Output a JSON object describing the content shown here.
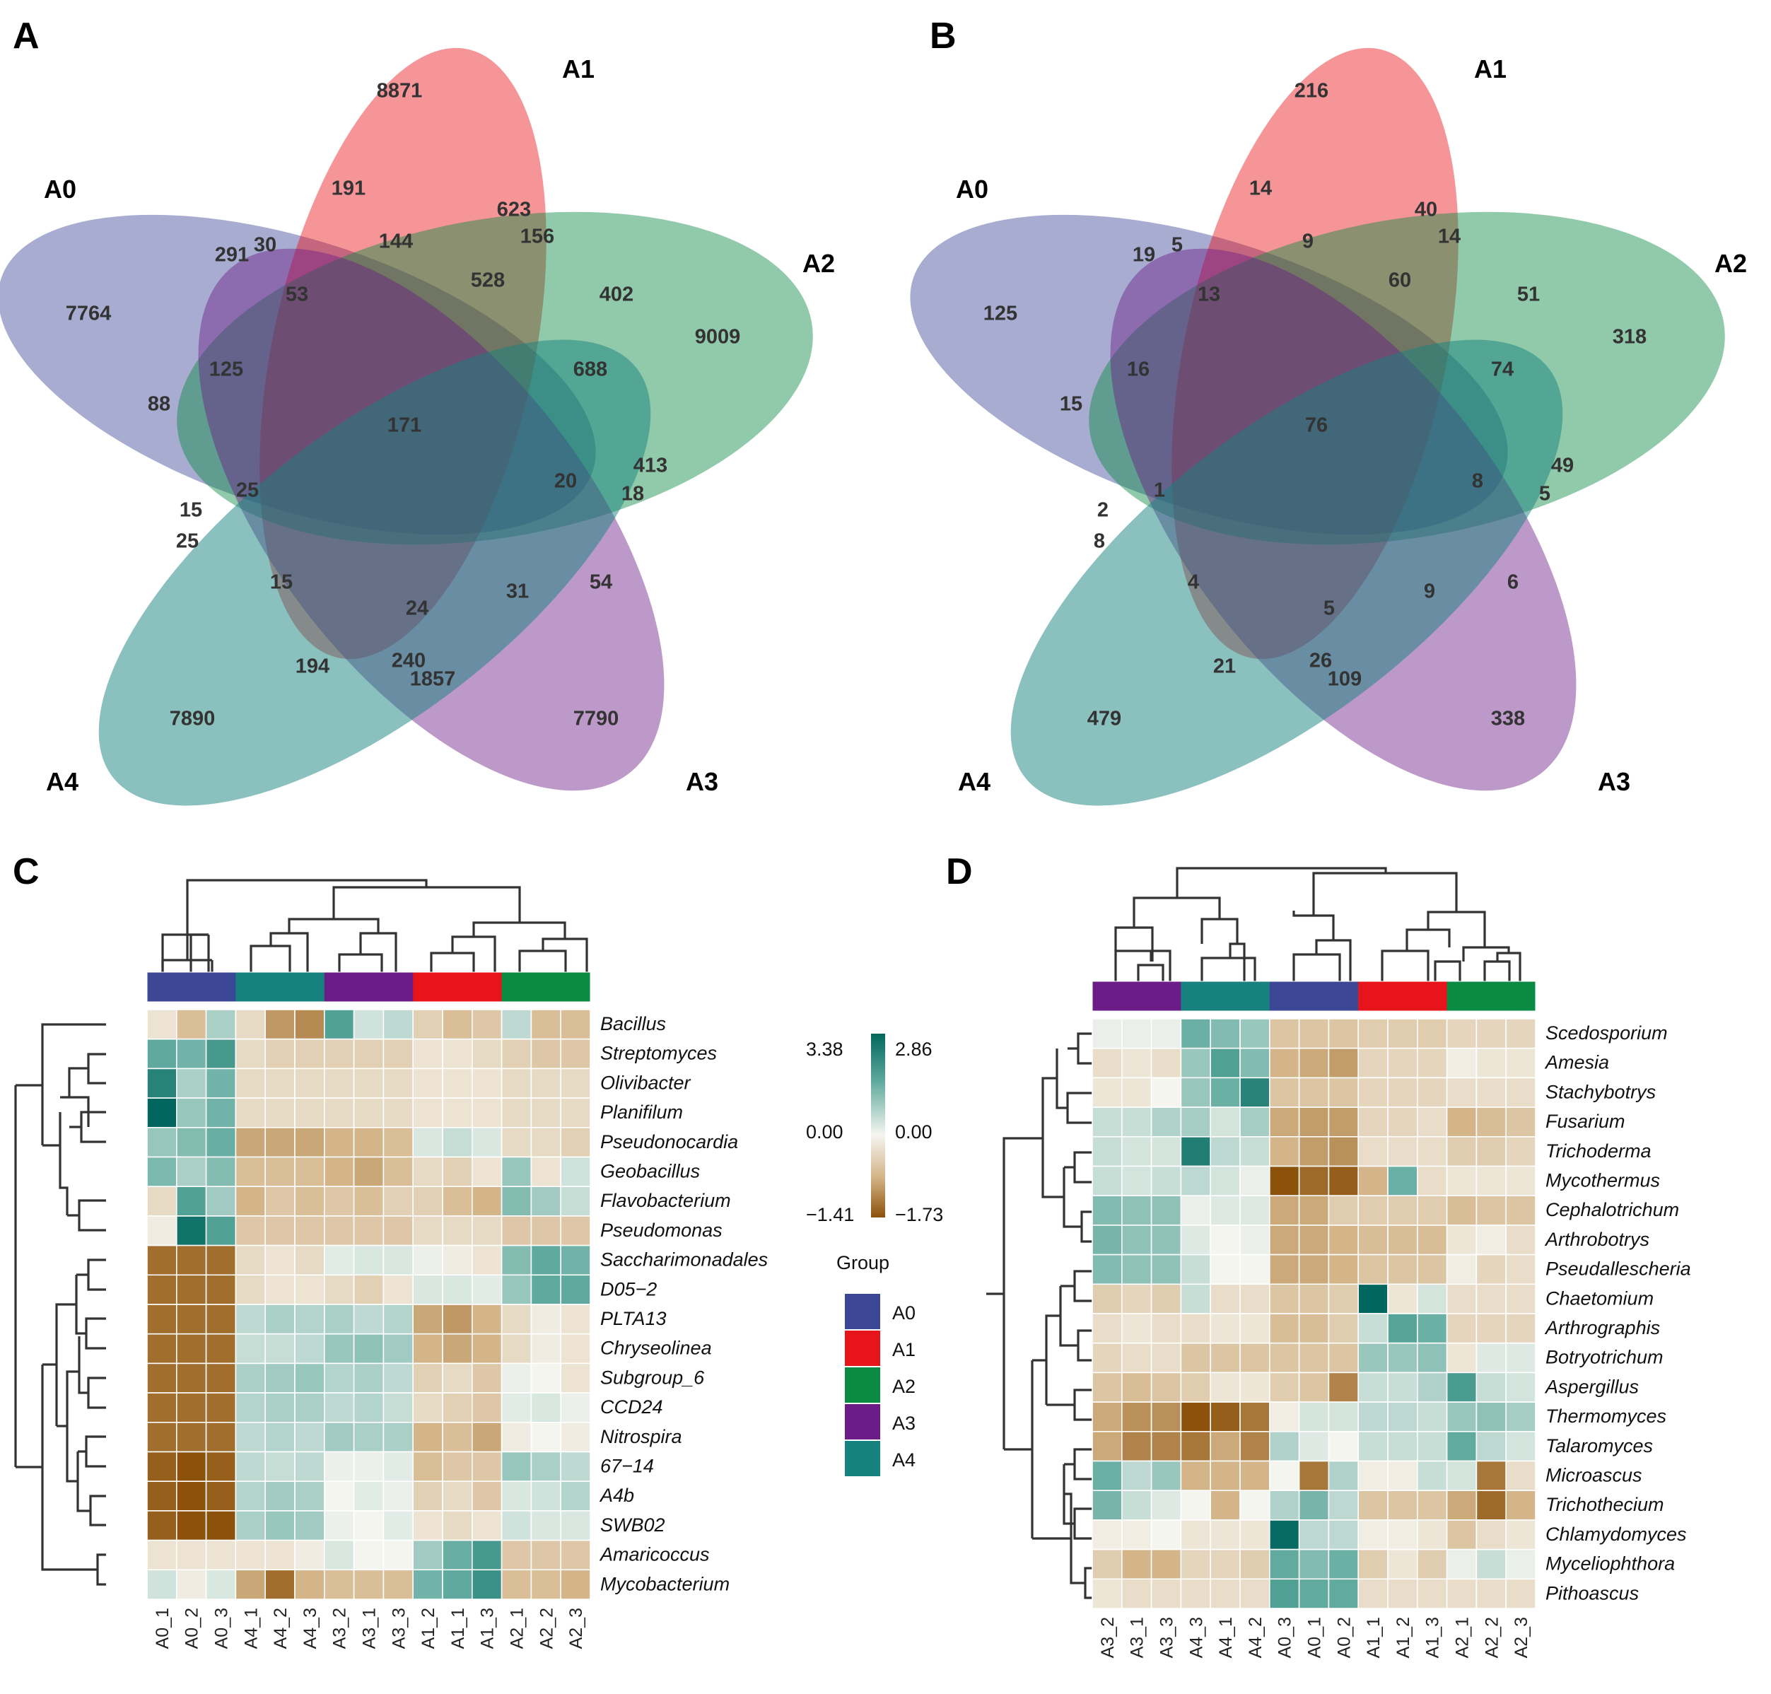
{
  "panels": {
    "A": "A",
    "B": "B",
    "C": "C",
    "D": "D"
  },
  "colors": {
    "A0": "#3C4896",
    "A1": "#E8141B",
    "A2": "#0B8A43",
    "A3": "#6C1C87",
    "A4": "#16817E"
  },
  "venn_A": {
    "sets": [
      "A0",
      "A1",
      "A2",
      "A3",
      "A4"
    ],
    "counts": [
      {
        "region": "A1 only",
        "value": "8871"
      },
      {
        "region": "A2 only",
        "value": "9009"
      },
      {
        "region": "A3 only",
        "value": "7790"
      },
      {
        "region": "A4 only",
        "value": "7890"
      },
      {
        "region": "A0 only",
        "value": "7764"
      },
      {
        "region": "A0∩A1",
        "value": "191"
      },
      {
        "region": "A1∩A2",
        "value": "623"
      },
      {
        "region": "A1∩A2∩A3",
        "value": "156"
      },
      {
        "region": "A0∩A1∩A3",
        "value": "144"
      },
      {
        "region": "A0∩A1 edge",
        "value": "291"
      },
      {
        "region": "A0∩A1∩A4",
        "value": "30"
      },
      {
        "region": "A0∩A1∩A3∩A4",
        "value": "53"
      },
      {
        "region": "A1∩A2∩A3∩A0",
        "value": "528"
      },
      {
        "region": "A1∩A2∩A3 inner",
        "value": "402"
      },
      {
        "region": "A0∩A2∩A4",
        "value": "125"
      },
      {
        "region": "A2∩A3",
        "value": "688"
      },
      {
        "region": "A0∩A2",
        "value": "88"
      },
      {
        "region": "all",
        "value": "171"
      },
      {
        "region": "A0∩A2∩A3∩A4",
        "value": "25"
      },
      {
        "region": "A2∩A3∩A1",
        "value": "20"
      },
      {
        "region": "A2∩A3 edge",
        "value": "413"
      },
      {
        "region": "A2∩A3∩A4",
        "value": "18"
      },
      {
        "region": "A0∩A4∩A2",
        "value": "15"
      },
      {
        "region": "A0∩A4",
        "value": "25"
      },
      {
        "region": "A0∩A4∩A1",
        "value": "15"
      },
      {
        "region": "A1∩A3∩A4",
        "value": "24"
      },
      {
        "region": "A1∩A3",
        "value": "31"
      },
      {
        "region": "A3∩A1∩A2",
        "value": "54"
      },
      {
        "region": "A1∩A4",
        "value": "194"
      },
      {
        "region": "A1∩A3∩A4 low",
        "value": "240"
      },
      {
        "region": "A3∩A4",
        "value": "1857"
      }
    ]
  },
  "venn_B": {
    "sets": [
      "A0",
      "A1",
      "A2",
      "A3",
      "A4"
    ],
    "counts": [
      {
        "region": "A1 only",
        "value": "216"
      },
      {
        "region": "A2 only",
        "value": "318"
      },
      {
        "region": "A3 only",
        "value": "338"
      },
      {
        "region": "A4 only",
        "value": "479"
      },
      {
        "region": "A0 only",
        "value": "125"
      },
      {
        "region": "A0∩A1",
        "value": "14"
      },
      {
        "region": "A1∩A2",
        "value": "40"
      },
      {
        "region": "A1∩A2∩A3",
        "value": "14"
      },
      {
        "region": "A0∩A1∩A3",
        "value": "9"
      },
      {
        "region": "A0∩A1 edge",
        "value": "19"
      },
      {
        "region": "A0∩A1∩A4",
        "value": "5"
      },
      {
        "region": "A0∩A1∩A3∩A4",
        "value": "13"
      },
      {
        "region": "A1∩A2∩A3∩A0",
        "value": "60"
      },
      {
        "region": "A1∩A2∩A3 inner",
        "value": "51"
      },
      {
        "region": "A0∩A2∩A4",
        "value": "16"
      },
      {
        "region": "A2∩A3",
        "value": "74"
      },
      {
        "region": "A0∩A2",
        "value": "15"
      },
      {
        "region": "all",
        "value": "76"
      },
      {
        "region": "A0∩A2∩A3∩A4",
        "value": "1"
      },
      {
        "region": "A2∩A3∩A1",
        "value": "8"
      },
      {
        "region": "A2∩A3 edge",
        "value": "49"
      },
      {
        "region": "A2∩A3∩A4",
        "value": "5"
      },
      {
        "region": "A0∩A4∩A2",
        "value": "2"
      },
      {
        "region": "A0∩A4",
        "value": "8"
      },
      {
        "region": "A0∩A4∩A1",
        "value": "4"
      },
      {
        "region": "A1∩A3∩A4",
        "value": "5"
      },
      {
        "region": "A1∩A3",
        "value": "9"
      },
      {
        "region": "A3∩A1∩A2",
        "value": "6"
      },
      {
        "region": "A1∩A4",
        "value": "21"
      },
      {
        "region": "A1∩A3∩A4 low",
        "value": "26"
      },
      {
        "region": "A3∩A4",
        "value": "109"
      }
    ]
  },
  "chart_data": [
    {
      "type": "heatmap",
      "panel": "C",
      "rows": [
        "Bacillus",
        "Streptomyces",
        "Olivibacter",
        "Planifilum",
        "Pseudonocardia",
        "Geobacillus",
        "Flavobacterium",
        "Pseudomonas",
        "Saccharimonadales",
        "D05−2",
        "PLTA13",
        "Chryseolinea",
        "Subgroup_6",
        "CCD24",
        "Nitrospira",
        "67−14",
        "A4b",
        "SWB02",
        "Amaricoccus",
        "Mycobacterium"
      ],
      "columns": [
        "A0_1",
        "A0_2",
        "A0_3",
        "A4_1",
        "A4_2",
        "A4_3",
        "A3_2",
        "A3_1",
        "A3_3",
        "A1_2",
        "A1_1",
        "A1_3",
        "A2_1",
        "A2_2",
        "A2_3"
      ],
      "column_groups": [
        "A0",
        "A0",
        "A0",
        "A4",
        "A4",
        "A4",
        "A3",
        "A3",
        "A3",
        "A1",
        "A1",
        "A1",
        "A2",
        "A2",
        "A2"
      ],
      "values": [
        [
          -0.2,
          -0.6,
          0.8,
          -0.3,
          -0.9,
          -1.0,
          1.8,
          0.4,
          0.6,
          -0.4,
          -0.6,
          -0.5,
          0.6,
          -0.6,
          -0.6
        ],
        [
          1.6,
          1.4,
          2.0,
          -0.3,
          -0.4,
          -0.4,
          -0.4,
          -0.4,
          -0.4,
          -0.2,
          -0.2,
          -0.3,
          -0.4,
          -0.5,
          -0.5
        ],
        [
          2.6,
          0.8,
          1.4,
          -0.3,
          -0.3,
          -0.3,
          -0.3,
          -0.3,
          -0.3,
          -0.2,
          -0.2,
          -0.2,
          -0.3,
          -0.3,
          -0.3
        ],
        [
          3.3,
          1.0,
          1.4,
          -0.3,
          -0.3,
          -0.3,
          -0.3,
          -0.3,
          -0.3,
          -0.2,
          -0.2,
          -0.2,
          -0.3,
          -0.3,
          -0.3
        ],
        [
          1.0,
          1.2,
          1.5,
          -0.8,
          -0.8,
          -0.8,
          -0.7,
          -0.7,
          -0.6,
          0.3,
          0.5,
          0.3,
          -0.3,
          -0.3,
          -0.4
        ],
        [
          1.3,
          0.8,
          1.2,
          -0.6,
          -0.6,
          -0.6,
          -0.7,
          -0.8,
          -0.6,
          -0.3,
          -0.4,
          -0.2,
          1.0,
          -0.2,
          0.4
        ],
        [
          -0.3,
          1.8,
          0.9,
          -0.7,
          -0.5,
          -0.6,
          -0.5,
          -0.6,
          -0.4,
          -0.4,
          -0.6,
          -0.7,
          1.2,
          0.9,
          0.5
        ],
        [
          -0.1,
          3.0,
          1.8,
          -0.5,
          -0.5,
          -0.5,
          -0.5,
          -0.5,
          -0.5,
          -0.3,
          -0.3,
          -0.3,
          -0.5,
          -0.5,
          -0.5
        ],
        [
          -1.2,
          -1.2,
          -1.2,
          -0.3,
          -0.2,
          -0.3,
          0.2,
          0.3,
          0.3,
          0.1,
          -0.1,
          -0.2,
          1.2,
          1.6,
          1.4
        ],
        [
          -1.2,
          -1.2,
          -1.2,
          -0.3,
          -0.2,
          -0.2,
          -0.3,
          -0.4,
          -0.2,
          0.3,
          0.3,
          0.2,
          1.0,
          1.6,
          1.6
        ],
        [
          -1.2,
          -1.2,
          -1.2,
          0.6,
          0.8,
          0.7,
          0.8,
          0.6,
          0.7,
          -0.8,
          -0.9,
          -0.7,
          -0.3,
          -0.1,
          -0.2
        ],
        [
          -1.2,
          -1.2,
          -1.2,
          0.5,
          0.5,
          0.6,
          1.0,
          1.1,
          0.9,
          -0.7,
          -0.8,
          -0.7,
          -0.3,
          -0.1,
          -0.2
        ],
        [
          -1.2,
          -1.2,
          -1.2,
          0.8,
          0.9,
          1.0,
          0.7,
          0.8,
          0.6,
          -0.4,
          -0.3,
          -0.5,
          0.1,
          0.0,
          -0.2
        ],
        [
          -1.2,
          -1.2,
          -1.2,
          0.7,
          0.8,
          0.8,
          0.6,
          0.7,
          0.5,
          -0.3,
          -0.4,
          -0.5,
          0.2,
          0.3,
          0.1
        ],
        [
          -1.2,
          -1.2,
          -1.2,
          0.6,
          0.7,
          0.6,
          0.9,
          0.8,
          0.8,
          -0.7,
          -0.6,
          -0.8,
          -0.1,
          0.0,
          -0.1
        ],
        [
          -1.3,
          -1.4,
          -1.3,
          0.6,
          0.5,
          0.6,
          0.1,
          0.1,
          0.2,
          -0.6,
          -0.5,
          -0.5,
          1.0,
          0.8,
          0.6
        ],
        [
          -1.3,
          -1.4,
          -1.3,
          0.7,
          0.9,
          0.8,
          0.0,
          0.2,
          0.1,
          -0.4,
          -0.3,
          -0.5,
          0.3,
          0.4,
          0.7
        ],
        [
          -1.3,
          -1.4,
          -1.4,
          0.8,
          1.0,
          0.9,
          0.1,
          0.0,
          0.2,
          -0.2,
          -0.3,
          -0.2,
          0.4,
          0.3,
          0.3
        ],
        [
          -0.2,
          -0.2,
          -0.2,
          -0.2,
          -0.2,
          -0.1,
          0.3,
          0.0,
          0.0,
          0.9,
          1.5,
          2.0,
          -0.5,
          -0.5,
          -0.5
        ],
        [
          0.4,
          -0.1,
          0.3,
          -0.8,
          -1.2,
          -0.7,
          -0.6,
          -0.6,
          -0.6,
          1.4,
          1.6,
          2.2,
          -0.6,
          -0.6,
          -0.7
        ]
      ],
      "legend": {
        "top": "3.38",
        "mid": "0.00",
        "bottom": "−1.41",
        "title": "Group",
        "groups": [
          "A0",
          "A1",
          "A2",
          "A3",
          "A4"
        ]
      }
    },
    {
      "type": "heatmap",
      "panel": "D",
      "rows": [
        "Scedosporium",
        "Amesia",
        "Stachybotrys",
        "Fusarium",
        "Trichoderma",
        "Mycothermus",
        "Cephalotrichum",
        "Arthrobotrys",
        "Pseudallescheria",
        "Chaetomium",
        "Arthrographis",
        "Botryotrichum",
        "Aspergillus",
        "Thermomyces",
        "Talaromyces",
        "Microascus",
        "Trichothecium",
        "Chlamydomyces",
        "Myceliophthora",
        "Pithoascus"
      ],
      "columns": [
        "A3_2",
        "A3_1",
        "A3_3",
        "A4_3",
        "A4_1",
        "A4_2",
        "A0_3",
        "A0_1",
        "A0_2",
        "A1_1",
        "A1_2",
        "A1_3",
        "A2_1",
        "A2_2",
        "A2_3"
      ],
      "column_groups": [
        "A3",
        "A3",
        "A3",
        "A4",
        "A4",
        "A4",
        "A0",
        "A0",
        "A0",
        "A1",
        "A1",
        "A1",
        "A2",
        "A2",
        "A2"
      ],
      "values": [
        [
          0.1,
          0.1,
          0.1,
          1.2,
          1.0,
          0.8,
          -0.6,
          -0.6,
          -0.6,
          -0.5,
          -0.5,
          -0.5,
          -0.4,
          -0.4,
          -0.4
        ],
        [
          -0.3,
          -0.2,
          -0.3,
          0.8,
          1.5,
          1.0,
          -0.8,
          -0.9,
          -1.0,
          -0.4,
          -0.4,
          -0.4,
          -0.1,
          -0.2,
          -0.2
        ],
        [
          -0.2,
          -0.2,
          0.0,
          0.8,
          1.2,
          2.1,
          -0.6,
          -0.6,
          -0.6,
          -0.4,
          -0.4,
          -0.4,
          -0.3,
          -0.3,
          -0.3
        ],
        [
          0.4,
          0.4,
          0.6,
          0.7,
          0.3,
          0.7,
          -0.9,
          -1.0,
          -1.0,
          -0.4,
          -0.4,
          -0.3,
          -0.8,
          -0.7,
          -0.6
        ],
        [
          0.4,
          0.3,
          0.3,
          2.2,
          0.5,
          0.4,
          -0.8,
          -1.0,
          -1.1,
          -0.3,
          -0.3,
          -0.3,
          -0.5,
          -0.5,
          -0.4
        ],
        [
          0.4,
          0.3,
          0.4,
          0.5,
          0.3,
          0.1,
          -1.6,
          -1.4,
          -1.5,
          -0.8,
          1.2,
          -0.3,
          -0.2,
          -0.2,
          -0.2
        ],
        [
          1.0,
          0.9,
          0.9,
          0.1,
          0.2,
          0.2,
          -0.9,
          -0.9,
          -0.5,
          -0.5,
          -0.5,
          -0.5,
          -0.7,
          -0.6,
          -0.6
        ],
        [
          1.1,
          0.9,
          0.9,
          0.2,
          0.0,
          0.1,
          -0.9,
          -0.9,
          -0.8,
          -0.7,
          -0.7,
          -0.7,
          -0.2,
          -0.1,
          -0.3
        ],
        [
          1.0,
          0.9,
          0.9,
          0.4,
          0.0,
          0.0,
          -0.9,
          -0.9,
          -0.8,
          -0.6,
          -0.6,
          -0.6,
          -0.1,
          -0.4,
          -0.3
        ],
        [
          -0.5,
          -0.4,
          -0.5,
          0.4,
          -0.3,
          -0.3,
          -0.6,
          -0.6,
          -0.5,
          2.7,
          -0.2,
          0.3,
          -0.3,
          -0.3,
          -0.3
        ],
        [
          -0.3,
          -0.2,
          -0.3,
          -0.3,
          -0.2,
          -0.2,
          -0.7,
          -0.7,
          -0.5,
          0.4,
          1.4,
          1.2,
          -0.4,
          -0.4,
          -0.4
        ],
        [
          -0.4,
          -0.3,
          -0.3,
          -0.6,
          -0.6,
          -0.6,
          -0.6,
          -0.6,
          -0.6,
          0.8,
          0.8,
          0.9,
          -0.2,
          0.2,
          0.2
        ],
        [
          -0.6,
          -0.7,
          -0.6,
          -0.5,
          -0.2,
          -0.2,
          -0.5,
          -0.6,
          -1.2,
          0.4,
          0.4,
          0.6,
          1.6,
          0.4,
          0.3
        ],
        [
          -0.9,
          -1.1,
          -1.1,
          -1.6,
          -1.5,
          -1.3,
          -0.1,
          0.3,
          0.3,
          0.5,
          0.5,
          0.4,
          0.8,
          0.9,
          0.7
        ],
        [
          -0.9,
          -1.2,
          -1.2,
          -1.3,
          -0.9,
          -1.2,
          0.6,
          0.2,
          0.0,
          0.4,
          0.4,
          0.4,
          1.3,
          0.5,
          0.3
        ],
        [
          1.2,
          0.5,
          0.8,
          -0.8,
          -0.8,
          -0.8,
          0.0,
          -1.3,
          0.6,
          -0.1,
          -0.1,
          0.4,
          0.3,
          -1.3,
          -0.3
        ],
        [
          1.1,
          0.4,
          0.2,
          0.0,
          -0.8,
          0.0,
          0.6,
          1.1,
          0.5,
          -0.6,
          -0.6,
          -0.6,
          -0.9,
          -1.4,
          -0.8
        ],
        [
          -0.1,
          -0.1,
          0.0,
          -0.2,
          -0.2,
          -0.2,
          2.6,
          0.5,
          0.5,
          -0.1,
          -0.1,
          -0.2,
          -0.6,
          -0.3,
          -0.2
        ],
        [
          -0.5,
          -0.8,
          -0.8,
          -0.4,
          -0.4,
          -0.5,
          1.3,
          1.0,
          1.2,
          -0.5,
          -0.2,
          -0.5,
          0.1,
          0.4,
          0.1
        ],
        [
          -0.2,
          -0.3,
          -0.3,
          -0.3,
          -0.3,
          -0.3,
          1.5,
          1.3,
          1.3,
          -0.3,
          -0.3,
          -0.3,
          -0.3,
          -0.3,
          -0.3
        ]
      ],
      "legend": {
        "top": "2.86",
        "mid": "0.00",
        "bottom": "−1.73"
      }
    }
  ]
}
